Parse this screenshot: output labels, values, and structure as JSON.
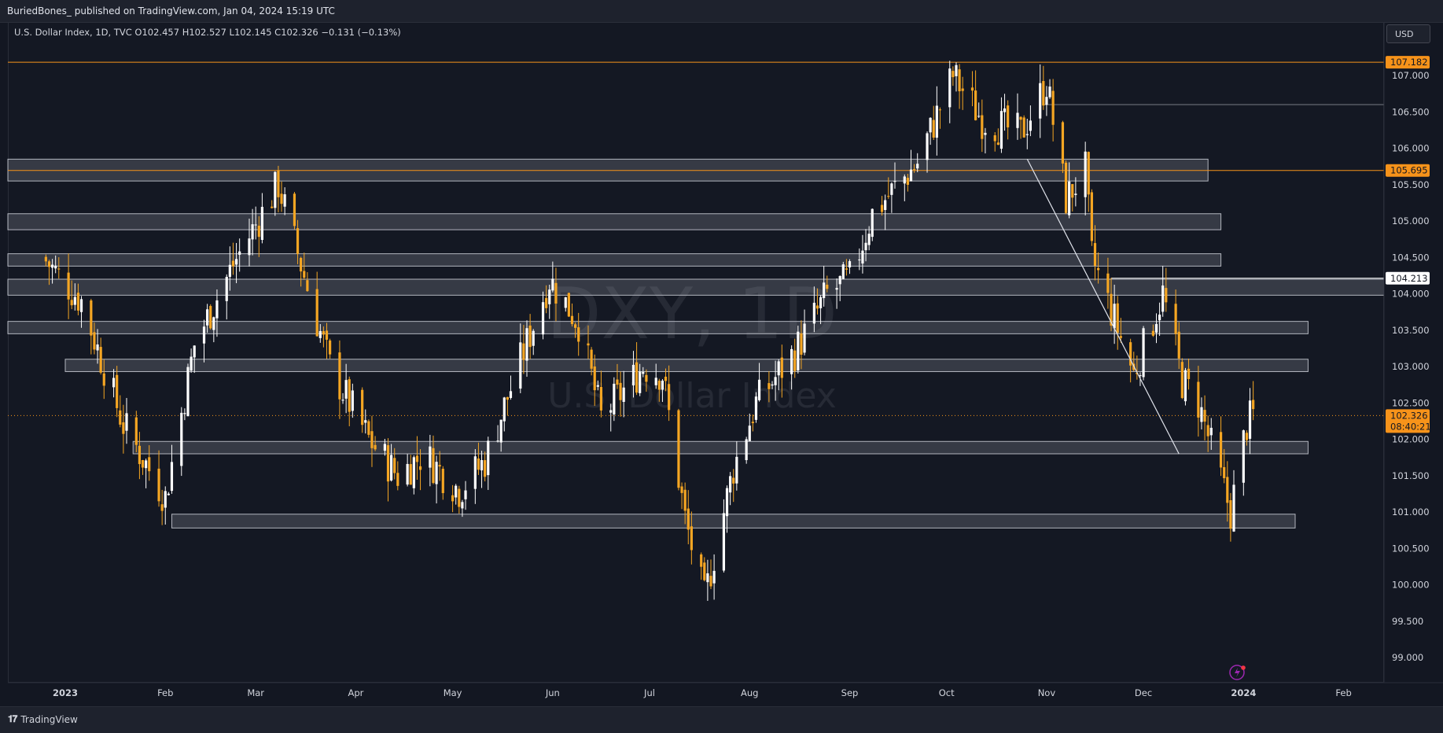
{
  "header": {
    "credit": "BuriedBones_ published on TradingView.com, Jan 04, 2024 15:19 UTC",
    "legend": "U.S. Dollar Index, 1D, TVC  O102.457  H102.527  L102.145  C102.326  −0.131 (−0.13%)"
  },
  "currency_button": "USD",
  "watermark": {
    "symbol": "DXY, 1D",
    "name": "U.S. Dollar Index"
  },
  "footer": {
    "brand": "TradingView"
  },
  "colors": {
    "background": "#131722",
    "orange": "#f7931a",
    "candle_up": "#ffffff",
    "candle_down": "#f5a623",
    "zone": "#ffffff",
    "level_line": "#f7931a"
  },
  "chart_data": {
    "type": "candlestick",
    "symbol": "DXY",
    "interval": "1D",
    "ylim": [
      98.6,
      107.9
    ],
    "y_ticks": [
      "99.000",
      "99.500",
      "100.000",
      "100.500",
      "101.000",
      "101.500",
      "102.000",
      "102.500",
      "103.000",
      "103.500",
      "104.000",
      "104.500",
      "105.000",
      "105.500",
      "106.000",
      "106.500",
      "107.000"
    ],
    "x_ticks": [
      "2023",
      "Feb",
      "Mar",
      "Apr",
      "May",
      "Jun",
      "Jul",
      "Aug",
      "Sep",
      "Oct",
      "Nov",
      "Dec",
      "2024",
      "Feb"
    ],
    "price_labels": [
      {
        "text": "107.182",
        "value": 107.182,
        "style": "orange"
      },
      {
        "text": "105.695",
        "value": 105.695,
        "style": "orange"
      },
      {
        "text": "104.213",
        "value": 104.213,
        "style": "white"
      },
      {
        "text": "102.326",
        "sub": "08:40:21",
        "value": 102.326,
        "style": "orange"
      }
    ],
    "horizontal_lines": [
      {
        "value": 107.182,
        "color": "orange",
        "from": "start"
      },
      {
        "value": 105.695,
        "color": "orange",
        "from": "start"
      },
      {
        "value": 106.6,
        "color": "grey",
        "from": "2023-10-31"
      },
      {
        "value": 104.213,
        "color": "white",
        "from": "2023-11-21"
      },
      {
        "value": 102.326,
        "color": "orange-dotted",
        "from": "start"
      }
    ],
    "zones": [
      {
        "from": "start",
        "to": "2023-12-21",
        "low": 105.55,
        "high": 105.85
      },
      {
        "from": "start",
        "to": "2023-12-25",
        "low": 104.88,
        "high": 105.1
      },
      {
        "from": "start",
        "to": "2023-12-25",
        "low": 104.38,
        "high": 104.55
      },
      {
        "from": "start",
        "to": "2024-02-28",
        "low": 103.98,
        "high": 104.2
      },
      {
        "from": "start",
        "to": "2024-01-21",
        "low": 103.45,
        "high": 103.62
      },
      {
        "from": "2023-01-01",
        "to": "2024-01-21",
        "low": 102.93,
        "high": 103.1
      },
      {
        "from": "2023-01-22",
        "to": "2024-01-21",
        "low": 101.8,
        "high": 101.97
      },
      {
        "from": "2023-02-03",
        "to": "2024-01-17",
        "low": 100.78,
        "high": 100.97
      }
    ],
    "trendline": {
      "from": {
        "date": "2023-10-26",
        "value": 105.85
      },
      "to": {
        "date": "2023-12-12",
        "value": 101.8
      }
    },
    "anchors": [
      [
        "2022-12-25",
        104.5
      ],
      [
        "2023-01-06",
        103.9
      ],
      [
        "2023-01-19",
        102.2
      ],
      [
        "2023-02-01",
        101.2
      ],
      [
        "2023-02-10",
        103.3
      ],
      [
        "2023-02-22",
        104.4
      ],
      [
        "2023-03-08",
        105.5
      ],
      [
        "2023-03-15",
        104.4
      ],
      [
        "2023-03-24",
        103.0
      ],
      [
        "2023-04-05",
        102.0
      ],
      [
        "2023-04-14",
        101.5
      ],
      [
        "2023-04-22",
        101.8
      ],
      [
        "2023-05-03",
        101.3
      ],
      [
        "2023-05-11",
        101.7
      ],
      [
        "2023-05-31",
        104.2
      ],
      [
        "2023-06-09",
        103.6
      ],
      [
        "2023-06-16",
        102.3
      ],
      [
        "2023-06-29",
        103.0
      ],
      [
        "2023-07-05",
        102.9
      ],
      [
        "2023-07-12",
        100.9
      ],
      [
        "2023-07-18",
        99.8
      ],
      [
        "2023-07-27",
        101.6
      ],
      [
        "2023-08-03",
        102.5
      ],
      [
        "2023-08-15",
        103.2
      ],
      [
        "2023-08-25",
        104.0
      ],
      [
        "2023-09-01",
        104.2
      ],
      [
        "2023-09-08",
        105.1
      ],
      [
        "2023-09-22",
        105.8
      ],
      [
        "2023-10-03",
        107.0
      ],
      [
        "2023-10-12",
        106.4
      ],
      [
        "2023-10-24",
        106.2
      ],
      [
        "2023-11-01",
        106.9
      ],
      [
        "2023-11-07",
        105.3
      ],
      [
        "2023-11-13",
        105.7
      ],
      [
        "2023-11-15",
        104.5
      ],
      [
        "2023-11-28",
        102.9
      ],
      [
        "2023-12-07",
        104.0
      ],
      [
        "2023-12-13",
        102.8
      ],
      [
        "2023-12-18",
        102.5
      ],
      [
        "2023-12-28",
        101.0
      ],
      [
        "2024-01-02",
        102.2
      ],
      [
        "2024-01-04",
        102.33
      ]
    ]
  }
}
